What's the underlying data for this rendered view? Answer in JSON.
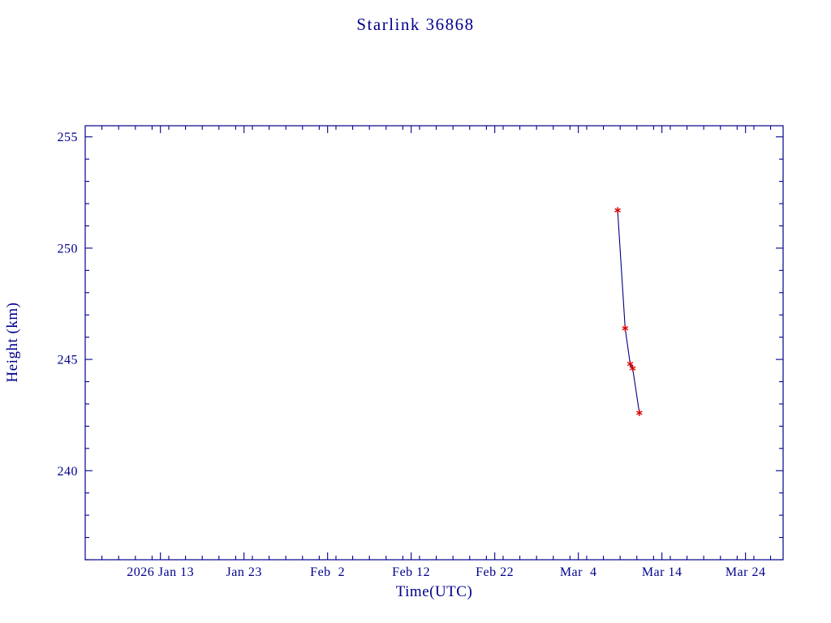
{
  "page": {
    "background": "#ffffff"
  },
  "chart_data": {
    "type": "line",
    "title": "Starlink 36868",
    "xlabel": "Time(UTC)",
    "ylabel": "Height (km)",
    "grid": false,
    "legend": "none",
    "x_tick_labels": [
      "2026 Jan 13",
      "Jan 23",
      "Feb  2",
      "Feb 12",
      "Feb 22",
      "Mar  4",
      "Mar 14",
      "Mar 24"
    ],
    "x_tick_days_of_year": [
      13,
      23,
      33,
      43,
      53,
      63,
      73,
      83
    ],
    "x_minor_step_days": 2,
    "xlim_days_of_year": [
      4,
      87.5
    ],
    "y_ticks": [
      240,
      245,
      250,
      255
    ],
    "y_minor_step": 1,
    "ylim": [
      236,
      255.5
    ],
    "colors": {
      "axis": "#00008B",
      "text": "#00008B",
      "line": "#000080",
      "marker": "#dd0000",
      "background": "#ffffff"
    },
    "series": [
      {
        "name": "height",
        "marker": "asterisk",
        "points": [
          {
            "date_utc": "2026 Mar 8.7",
            "day_of_year": 67.7,
            "height_km": 251.7
          },
          {
            "date_utc": "2026 Mar 9.6",
            "day_of_year": 68.6,
            "height_km": 246.4
          },
          {
            "date_utc": "2026 Mar 10.2",
            "day_of_year": 69.2,
            "height_km": 244.8
          },
          {
            "date_utc": "2026 Mar 10.5",
            "day_of_year": 69.5,
            "height_km": 244.6
          },
          {
            "date_utc": "2026 Mar 11.3",
            "day_of_year": 70.3,
            "height_km": 242.6
          }
        ]
      }
    ]
  }
}
